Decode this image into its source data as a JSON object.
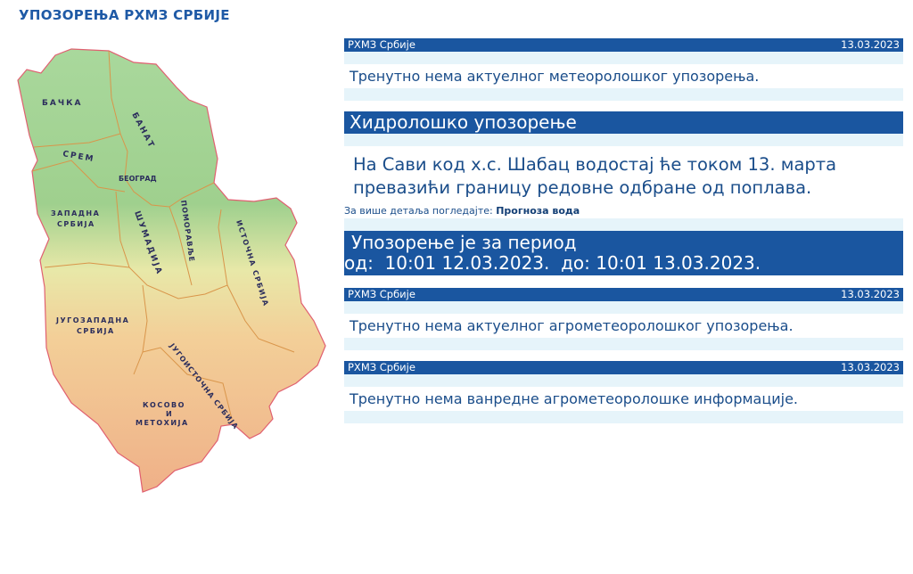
{
  "page_title": "УПОЗОРЕЊА РХМЗ СРБИЈЕ",
  "map": {
    "regions": [
      "БАЧКА",
      "БАНАТ",
      "СРЕМ",
      "БЕОГРАД",
      "ЗАПАДНА",
      "СРБИЈА",
      "ШУМАДИЈА",
      "ПОМОРАВЉЕ",
      "ИСТОЧНА СРБИЈА",
      "ЈУГОЗАПАДНА",
      "СРБИЈА",
      "ЈУГОИСТОЧНА СРБИЈА",
      "КОСОВО",
      "И",
      "МЕТОХИЈА"
    ]
  },
  "meteo": {
    "source": "РХМЗ Србије",
    "date": "13.03.2023",
    "message": "Тренутно нема актуелног метеоролошког упозорења."
  },
  "hydro": {
    "title": "Хидролошко упозорење",
    "message": "На Сави код х.с. Шабац водостај ће током 13. марта превазићи границу редовне одбране од поплава.",
    "more_label": "За више детаља погледајте:",
    "more_link": "Прогноза вода",
    "period_label": "Упозорење је за период",
    "period_range": "од:  10:01 12.03.2023.  до: 10:01 13.03.2023."
  },
  "agro": {
    "source": "РХМЗ Србије",
    "date": "13.03.2023",
    "message": "Тренутно нема актуелног агрометеоролошког упозорења."
  },
  "agro_info": {
    "source": "РХМЗ Србије",
    "date": "13.03.2023",
    "message": "Тренутно нема ванредне агрометеоролошке информације."
  },
  "colors": {
    "header_blue": "#1a56a0",
    "light_row": "#e6f4fa",
    "text_blue": "#1a4d8a"
  }
}
